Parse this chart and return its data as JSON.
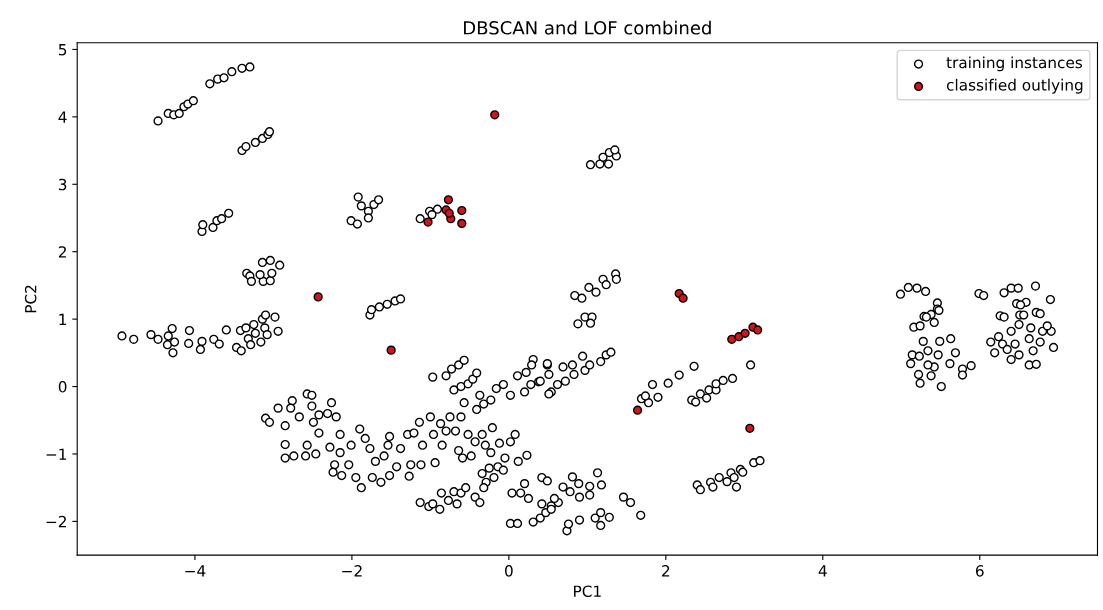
{
  "chart_data": {
    "type": "scatter",
    "title": "DBSCAN and LOF combined",
    "xlabel": "PC1",
    "ylabel": "PC2",
    "xlim": [
      -5.5,
      7.5
    ],
    "ylim": [
      -2.5,
      5.1
    ],
    "xticks": [
      -4,
      -2,
      0,
      2,
      4,
      6
    ],
    "yticks": [
      -2,
      -1,
      0,
      1,
      2,
      3,
      4,
      5
    ],
    "grid": false,
    "legend": "top right",
    "marker": "circle",
    "series": [
      {
        "name": "training instances",
        "color": "#ffffff",
        "x": [
          -4.47,
          -4.34,
          -4.27,
          -4.2,
          -4.14,
          -4.09,
          -4.02,
          -3.81,
          -3.71,
          -3.63,
          -3.53,
          -3.4,
          -3.3,
          -3.4,
          -3.35,
          -3.23,
          -3.14,
          -3.07,
          -3.05,
          -3.91,
          -3.9,
          -3.77,
          -3.72,
          -3.66,
          -3.57,
          -3.34,
          -3.3,
          -3.28,
          -3.13,
          -3.04,
          -3.02,
          -3.14,
          -3.04,
          -2.92,
          -3.17,
          -1.77,
          -1.75,
          -1.65,
          -1.55,
          -1.45,
          -1.38,
          -2.01,
          -1.93,
          -1.92,
          -1.88,
          -1.79,
          -1.72,
          -1.66,
          -1.79,
          -1.13,
          -1.01,
          -0.91,
          -0.98,
          1.04,
          1.16,
          1.27,
          1.2,
          1.28,
          1.37,
          1.35,
          0.84,
          0.93,
          1.02,
          1.11,
          1.2,
          1.24,
          1.36,
          1.37,
          0.88,
          0.97,
          1.06,
          1.04,
          4.99,
          5.09,
          5.2,
          5.31,
          5.46,
          5.46,
          5.38,
          5.29,
          5.99,
          6.05,
          6.31,
          6.4,
          6.49,
          6.71,
          6.9,
          6.47,
          6.59,
          6.26,
          6.51,
          6.72,
          -4.93,
          -4.78,
          -4.56,
          -4.47,
          -4.35,
          -4.34,
          -4.29,
          -4.28,
          -4.26,
          -4.08,
          -4.07,
          -3.93,
          -3.91,
          -3.76,
          -3.69,
          -3.6,
          -3.47,
          -3.41,
          -3.42,
          -3.35,
          -3.32,
          -3.29,
          -3.23,
          -3.25,
          -3.16,
          -3.11,
          -3.08,
          -3.14,
          -3.1,
          -2.98,
          -2.94,
          -3.1,
          -3.05,
          -2.94,
          -2.85,
          -2.85,
          -2.85,
          -2.76,
          -2.74,
          -2.78,
          -2.67,
          -2.57,
          -2.57,
          -2.51,
          -2.51,
          -2.49,
          -2.59,
          -2.46,
          -2.42,
          -2.42,
          -2.31,
          -2.26,
          -2.28,
          -2.2,
          -2.15,
          -2.15,
          -2.22,
          -2.24,
          -2.13,
          -2.04,
          -2.01,
          -1.9,
          -1.95,
          -1.88,
          -1.83,
          -1.77,
          -1.74,
          -1.7,
          -1.63,
          -1.59,
          -1.54,
          -1.52,
          -1.52,
          -1.43,
          -1.38,
          -1.29,
          -1.27,
          -1.25,
          -1.21,
          -1.14,
          -1.12,
          -1.1,
          -1.0,
          -0.96,
          -0.94,
          -0.85,
          -0.87,
          -0.8,
          -0.75,
          -0.68,
          -0.61,
          -0.64,
          -0.59,
          -0.52,
          -0.48,
          -0.43,
          -0.34,
          -0.3,
          -0.21,
          -0.23,
          -0.12,
          -0.05,
          0.02,
          0.08,
          0.23,
          0.12,
          -0.34,
          -0.25,
          -0.19,
          -0.14,
          -0.07,
          -0.29,
          -0.97,
          -0.8,
          -0.73,
          -0.7,
          -0.64,
          -0.57,
          -0.57,
          -0.61,
          -0.52,
          -0.46,
          -0.41,
          -0.37,
          -0.41,
          -0.32,
          -0.23,
          -0.16,
          -0.07,
          0.02,
          0.11,
          0.2,
          0.28,
          0.22,
          0.31,
          0.29,
          0.38,
          0.49,
          0.51,
          0.54,
          -1.13,
          -1.02,
          -0.97,
          -0.88,
          -0.86,
          -0.77,
          -0.7,
          -0.66,
          -0.61,
          -0.55,
          -0.43,
          -0.37,
          -0.32,
          0.02,
          0.11,
          0.04,
          0.2,
          0.15,
          0.25,
          0.31,
          0.4,
          0.47,
          0.42,
          0.49,
          0.42,
          0.54,
          0.51,
          0.62,
          0.69,
          0.81,
          0.83,
          0.72,
          0.97,
          1.03,
          0.94,
          1.17,
          1.24,
          1.3,
          0.4,
          0.49,
          1.69,
          1.78,
          1.74,
          1.83,
          1.9,
          2.03,
          2.17,
          2.36,
          2.33,
          2.38,
          2.44,
          2.52,
          2.55,
          2.64,
          2.64,
          2.73,
          2.85,
          3.08,
          2.4,
          2.44,
          2.57,
          2.6,
          2.68,
          2.78,
          2.83,
          2.87,
          2.9,
          2.95,
          2.98,
          3.12,
          3.2,
          0.69,
          0.81,
          0.89,
          0.78,
          1.03,
          1.13,
          1.18,
          0.74,
          0.76,
          0.9,
          1.1,
          1.17,
          1.28,
          1.17,
          0.63,
          0.54,
          1.46,
          1.55,
          1.68,
          0.58,
          0.9,
          1.03,
          5.12,
          5.14,
          5.23,
          5.28,
          5.34,
          5.22,
          5.24,
          5.38,
          5.42,
          5.47,
          5.49,
          5.51,
          5.63,
          5.69,
          5.62,
          5.78,
          5.78,
          5.89,
          5.16,
          5.24,
          5.32,
          5.42,
          5.48,
          5.34,
          6.14,
          6.19,
          6.24,
          6.31,
          6.4,
          6.45,
          6.4,
          6.52,
          6.5,
          6.56,
          6.63,
          6.65,
          6.63,
          6.72,
          6.68,
          6.77,
          6.77,
          6.8,
          6.91,
          6.94,
          6.86,
          6.29,
          6.5,
          6.35
        ],
        "values": [
          3.94,
          4.05,
          4.03,
          4.05,
          4.15,
          4.19,
          4.24,
          4.49,
          4.56,
          4.58,
          4.67,
          4.72,
          4.74,
          3.5,
          3.56,
          3.62,
          3.68,
          3.74,
          3.78,
          2.3,
          2.4,
          2.36,
          2.46,
          2.49,
          2.57,
          1.68,
          1.64,
          1.56,
          1.56,
          1.57,
          1.68,
          1.84,
          1.87,
          1.8,
          1.66,
          1.06,
          1.14,
          1.18,
          1.22,
          1.27,
          1.3,
          2.46,
          2.41,
          2.81,
          2.68,
          2.6,
          2.7,
          2.77,
          2.5,
          2.49,
          2.6,
          2.63,
          2.55,
          3.29,
          3.3,
          3.3,
          3.4,
          3.47,
          3.42,
          3.51,
          1.35,
          1.31,
          1.47,
          1.4,
          1.59,
          1.51,
          1.67,
          1.59,
          0.93,
          1.03,
          1.03,
          0.94,
          1.37,
          1.47,
          1.46,
          1.41,
          1.24,
          1.15,
          1.07,
          1.04,
          1.38,
          1.35,
          1.39,
          1.46,
          1.46,
          1.49,
          1.29,
          1.23,
          1.25,
          1.05,
          1.06,
          1.1,
          0.75,
          0.7,
          0.77,
          0.7,
          0.62,
          0.75,
          0.86,
          0.5,
          0.66,
          0.64,
          0.83,
          0.55,
          0.67,
          0.7,
          0.63,
          0.84,
          0.58,
          0.53,
          0.83,
          0.87,
          0.71,
          0.62,
          0.79,
          0.92,
          0.66,
          0.87,
          0.77,
          1.0,
          1.06,
          1.03,
          0.82,
          -0.47,
          -0.53,
          -0.32,
          -0.58,
          -0.86,
          -1.06,
          -0.21,
          -1.03,
          -0.32,
          -0.45,
          -0.11,
          -0.87,
          -0.13,
          -0.29,
          -0.53,
          -1.03,
          -1.0,
          -0.69,
          -0.42,
          -0.4,
          -0.24,
          -0.9,
          -0.45,
          -0.71,
          -0.98,
          -1.16,
          -1.27,
          -1.32,
          -1.16,
          -0.87,
          -0.63,
          -1.35,
          -1.5,
          -0.77,
          -0.92,
          -1.35,
          -1.11,
          -1.42,
          -1.03,
          -0.87,
          -0.74,
          -1.32,
          -1.19,
          -0.92,
          -0.71,
          -1.33,
          -1.16,
          -0.69,
          -0.53,
          -1.16,
          -0.87,
          -0.45,
          -0.71,
          -1.13,
          -0.87,
          -0.55,
          -0.66,
          -0.45,
          -0.66,
          -0.45,
          -0.95,
          -1.06,
          -0.71,
          -1.03,
          -0.82,
          -0.71,
          -0.87,
          -0.61,
          -0.98,
          -0.84,
          -1.06,
          -0.82,
          -0.71,
          -1.02,
          -1.11,
          -1.29,
          -1.21,
          -1.35,
          -1.19,
          -1.24,
          -1.42,
          0.14,
          0.16,
          0.26,
          -0.05,
          0.32,
          0.39,
          -0.24,
          0.0,
          0.04,
          0.11,
          0.2,
          -0.13,
          -0.34,
          -0.26,
          -0.2,
          -0.03,
          0.03,
          -0.13,
          0.16,
          -0.08,
          0.03,
          0.21,
          0.4,
          0.32,
          0.07,
          0.32,
          0.18,
          -0.08,
          -1.72,
          -1.78,
          -1.74,
          -1.82,
          -1.58,
          -1.69,
          -1.56,
          -1.74,
          -1.58,
          -1.5,
          -1.64,
          -1.72,
          -1.5,
          -2.03,
          -2.03,
          -1.58,
          -1.44,
          -1.58,
          -1.66,
          -2.01,
          -1.95,
          -1.87,
          -1.35,
          -1.4,
          -1.74,
          -1.77,
          -0.11,
          0.03,
          0.29,
          0.32,
          0.18,
          0.08,
          0.24,
          0.32,
          0.45,
          0.37,
          0.47,
          0.51,
          0.08,
          0.34,
          -0.18,
          -0.24,
          -0.14,
          0.03,
          -0.16,
          0.05,
          0.17,
          0.3,
          -0.2,
          -0.23,
          -0.11,
          -0.17,
          -0.05,
          -0.05,
          0.04,
          0.09,
          0.12,
          0.32,
          -1.46,
          -1.53,
          -1.42,
          -1.49,
          -1.35,
          -1.41,
          -1.28,
          -1.35,
          -1.49,
          -1.23,
          -1.27,
          -1.13,
          -1.1,
          -1.49,
          -1.34,
          -1.44,
          -1.56,
          -1.48,
          -1.28,
          -1.46,
          -2.14,
          -2.04,
          -1.98,
          -1.95,
          -1.87,
          -1.94,
          -2.06,
          -1.72,
          -1.82,
          -1.64,
          -1.72,
          -1.91,
          -1.66,
          -1.64,
          -1.61,
          0.34,
          0.47,
          0.45,
          0.67,
          0.53,
          0.18,
          0.05,
          0.16,
          0.29,
          0.47,
          0.67,
          0.0,
          0.71,
          0.5,
          0.34,
          0.26,
          0.17,
          0.31,
          0.88,
          0.9,
          1.03,
          0.95,
          1.13,
          0.32,
          0.66,
          0.5,
          0.74,
          1.03,
          0.82,
          0.63,
          0.4,
          1.21,
          0.92,
          1.06,
          0.71,
          0.87,
          0.32,
          0.33,
          0.53,
          0.66,
          1.08,
          0.82,
          0.82,
          0.58,
          0.9,
          0.63,
          0.47,
          0.55
        ]
      },
      {
        "name": "classified outlying",
        "color": "#d0161b",
        "x": [
          -2.43,
          -1.03,
          -0.8,
          -0.77,
          -0.74,
          -0.6,
          -0.6,
          -0.76,
          -0.18,
          2.17,
          2.22,
          -1.5,
          1.64,
          3.07,
          2.84,
          2.93,
          3.01,
          3.11,
          3.17
        ],
        "values": [
          1.33,
          2.44,
          2.62,
          2.77,
          2.49,
          2.61,
          2.42,
          2.57,
          4.03,
          1.38,
          1.31,
          0.54,
          -0.35,
          -0.62,
          0.7,
          0.74,
          0.79,
          0.88,
          0.84
        ]
      }
    ]
  }
}
